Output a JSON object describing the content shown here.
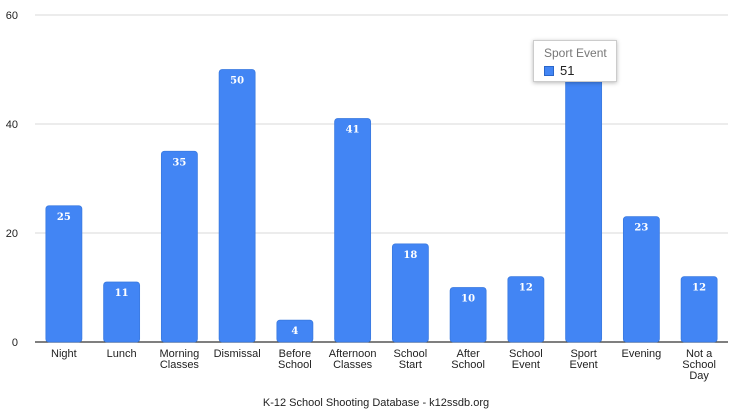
{
  "chart_data": {
    "type": "bar",
    "categories": [
      [
        "Night"
      ],
      [
        "Lunch"
      ],
      [
        "Morning",
        "Classes"
      ],
      [
        "Dismissal"
      ],
      [
        "Before",
        "School"
      ],
      [
        "Afternoon",
        "Classes"
      ],
      [
        "School",
        "Start"
      ],
      [
        "After",
        "School"
      ],
      [
        "School",
        "Event"
      ],
      [
        "Sport",
        "Event"
      ],
      [
        "Evening"
      ],
      [
        "Not a",
        "School",
        "Day"
      ]
    ],
    "values": [
      25,
      11,
      35,
      50,
      4,
      41,
      18,
      10,
      12,
      51,
      23,
      12
    ],
    "data_labels": [
      "25",
      "11",
      "35",
      "50",
      "4",
      "41",
      "18",
      "10",
      "12",
      "",
      "23",
      "12"
    ],
    "ylim": [
      0,
      60
    ],
    "y_ticks": [
      0,
      20,
      40,
      60
    ],
    "grid": true,
    "legend": "none",
    "bar_color": "#4285f4",
    "source": "K-12 School Shooting Database - k12ssdb.org",
    "tooltip": {
      "category_label": "Sport Event",
      "value": "51"
    }
  }
}
